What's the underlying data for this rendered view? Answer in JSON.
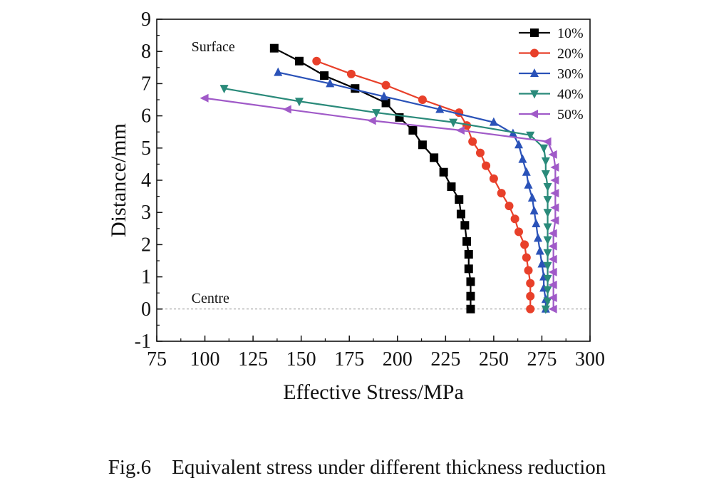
{
  "chart_data": {
    "type": "line",
    "xlabel": "Effective Stress/MPa",
    "ylabel": "Distance/mm",
    "xlim": [
      75,
      300
    ],
    "ylim": [
      -1,
      9
    ],
    "x_ticks": [
      75,
      100,
      125,
      150,
      175,
      200,
      225,
      250,
      275,
      300
    ],
    "y_ticks": [
      -1,
      0,
      1,
      2,
      3,
      4,
      5,
      6,
      7,
      8,
      9
    ],
    "grid": false,
    "legend_position": "top-right",
    "annotations": [
      {
        "text": "Surface",
        "x": 93,
        "y": 8.0
      },
      {
        "text": "Centre",
        "x": 93,
        "y": 0.2
      }
    ],
    "reference_line": {
      "y": 0,
      "style": "dashed"
    },
    "series": [
      {
        "name": "10%",
        "color": "#000000",
        "marker": "square",
        "points": [
          [
            136,
            8.1
          ],
          [
            149,
            7.7
          ],
          [
            162,
            7.25
          ],
          [
            178,
            6.85
          ],
          [
            194,
            6.4
          ],
          [
            201,
            5.95
          ],
          [
            208,
            5.55
          ],
          [
            213,
            5.1
          ],
          [
            219,
            4.7
          ],
          [
            224,
            4.25
          ],
          [
            228,
            3.8
          ],
          [
            232,
            3.4
          ],
          [
            233,
            2.95
          ],
          [
            235,
            2.6
          ],
          [
            236,
            2.1
          ],
          [
            237,
            1.7
          ],
          [
            237,
            1.25
          ],
          [
            238,
            0.85
          ],
          [
            238,
            0.4
          ],
          [
            238,
            0.0
          ]
        ]
      },
      {
        "name": "20%",
        "color": "#e8402a",
        "marker": "circle",
        "points": [
          [
            158,
            7.7
          ],
          [
            176,
            7.3
          ],
          [
            194,
            6.95
          ],
          [
            213,
            6.5
          ],
          [
            232,
            6.1
          ],
          [
            236,
            5.7
          ],
          [
            239,
            5.2
          ],
          [
            243,
            4.85
          ],
          [
            246,
            4.45
          ],
          [
            250,
            4.05
          ],
          [
            254,
            3.6
          ],
          [
            258,
            3.2
          ],
          [
            261,
            2.8
          ],
          [
            263,
            2.4
          ],
          [
            266,
            2.0
          ],
          [
            267,
            1.6
          ],
          [
            268,
            1.2
          ],
          [
            269,
            0.8
          ],
          [
            269,
            0.4
          ],
          [
            269,
            0.0
          ]
        ]
      },
      {
        "name": "30%",
        "color": "#2a52b8",
        "marker": "triangle-up",
        "points": [
          [
            138,
            7.35
          ],
          [
            165,
            7.0
          ],
          [
            193,
            6.6
          ],
          [
            222,
            6.2
          ],
          [
            250,
            5.8
          ],
          [
            260,
            5.45
          ],
          [
            263,
            5.1
          ],
          [
            265,
            4.65
          ],
          [
            267,
            4.25
          ],
          [
            268,
            3.85
          ],
          [
            270,
            3.45
          ],
          [
            271,
            3.05
          ],
          [
            272,
            2.65
          ],
          [
            273,
            2.2
          ],
          [
            274,
            1.8
          ],
          [
            275,
            1.4
          ],
          [
            276,
            1.0
          ],
          [
            276,
            0.65
          ],
          [
            277,
            0.3
          ],
          [
            277,
            0.0
          ]
        ]
      },
      {
        "name": "40%",
        "color": "#2a8a7a",
        "marker": "triangle-down",
        "points": [
          [
            110,
            6.85
          ],
          [
            149,
            6.45
          ],
          [
            189,
            6.1
          ],
          [
            229,
            5.8
          ],
          [
            269,
            5.4
          ],
          [
            276,
            5.0
          ],
          [
            277,
            4.6
          ],
          [
            277,
            4.2
          ],
          [
            278,
            3.8
          ],
          [
            278,
            3.4
          ],
          [
            278,
            3.0
          ],
          [
            278,
            2.55
          ],
          [
            278,
            2.15
          ],
          [
            278,
            1.75
          ],
          [
            278,
            1.35
          ],
          [
            278,
            0.95
          ],
          [
            278,
            0.6
          ],
          [
            278,
            0.25
          ],
          [
            277,
            0.0
          ]
        ]
      },
      {
        "name": "50%",
        "color": "#a05ac8",
        "marker": "triangle-left",
        "points": [
          [
            100,
            6.55
          ],
          [
            143,
            6.2
          ],
          [
            187,
            5.85
          ],
          [
            233,
            5.55
          ],
          [
            278,
            5.2
          ],
          [
            281,
            4.8
          ],
          [
            282,
            4.4
          ],
          [
            282,
            4.0
          ],
          [
            282,
            3.6
          ],
          [
            282,
            3.15
          ],
          [
            282,
            2.75
          ],
          [
            281,
            2.35
          ],
          [
            281,
            1.95
          ],
          [
            281,
            1.55
          ],
          [
            281,
            1.15
          ],
          [
            281,
            0.75
          ],
          [
            281,
            0.35
          ],
          [
            281,
            0.0
          ]
        ]
      }
    ]
  },
  "caption": "Fig.6    Equivalent stress under different thickness reduction"
}
